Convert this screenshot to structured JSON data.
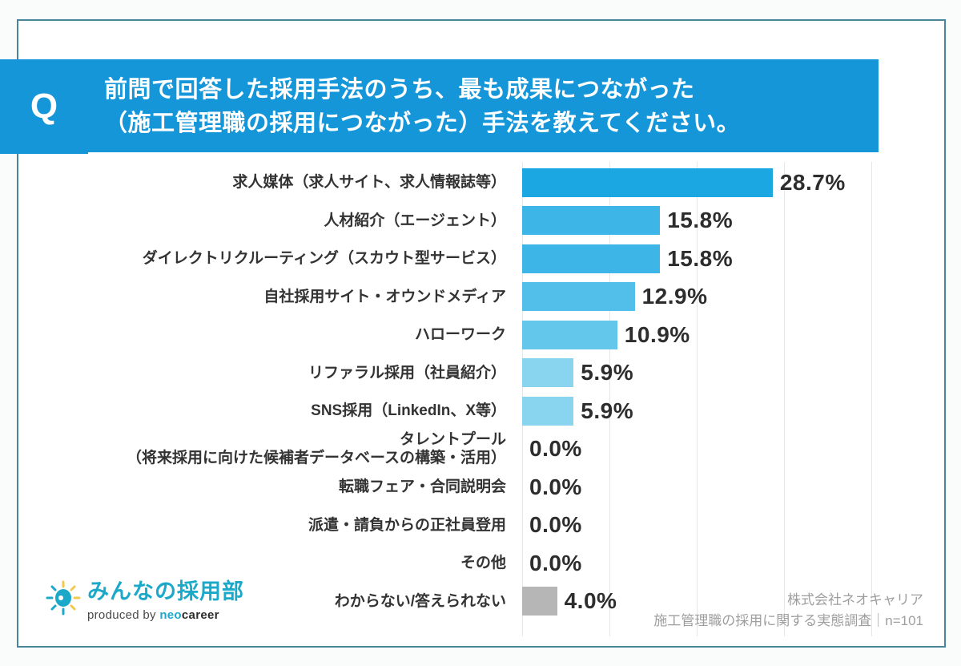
{
  "question": {
    "badge": "Q",
    "line1": "前問で回答した採用手法のうち、最も成果につながった",
    "line2": "（施工管理職の採用につながった）手法を教えてください。",
    "accent_color": "#1496d9"
  },
  "chart_data": {
    "type": "bar",
    "orientation": "horizontal",
    "unit": "%",
    "xlim": [
      0,
      40
    ],
    "gridlines_percent": [
      0,
      10,
      20,
      30,
      40
    ],
    "grid_color": "#e7e7e7",
    "categories": [
      "求人媒体（求人サイト、求人情報誌等）",
      "人材紹介（エージェント）",
      "ダイレクトリクルーティング（スカウト型サービス）",
      "自社採用サイト・オウンドメディア",
      "ハローワーク",
      "リファラル採用（社員紹介）",
      "SNS採用（LinkedIn、X等）",
      "タレントプール\n（将来採用に向けた候補者データベースの構築・活用）",
      "転職フェア・合同説明会",
      "派遣・請負からの正社員登用",
      "その他",
      "わからない/答えられない"
    ],
    "values": [
      28.7,
      15.8,
      15.8,
      12.9,
      10.9,
      5.9,
      5.9,
      0.0,
      0.0,
      0.0,
      0.0,
      4.0
    ],
    "value_labels": [
      "28.7%",
      "15.8%",
      "15.8%",
      "12.9%",
      "10.9%",
      "5.9%",
      "5.9%",
      "0.0%",
      "0.0%",
      "0.0%",
      "0.0%",
      "4.0%"
    ],
    "bar_colors": [
      "#1ba7e1",
      "#3db5e6",
      "#3db5e6",
      "#51bfe9",
      "#63c7eb",
      "#89d4ef",
      "#89d4ef",
      "#a5def2",
      "#a5def2",
      "#a5def2",
      "#a5def2",
      "#b6b6b6"
    ]
  },
  "footer": {
    "logo": {
      "brand": "みんなの採用部",
      "produced_prefix": "produced by ",
      "producer_neo": "neo",
      "producer_career": "career",
      "brand_color": "#1ca9c9",
      "ray_color": "#f2c94c"
    },
    "source_line1": "株式会社ネオキャリア",
    "source_line2": "施工管理職の採用に関する実態調査｜n=101"
  }
}
